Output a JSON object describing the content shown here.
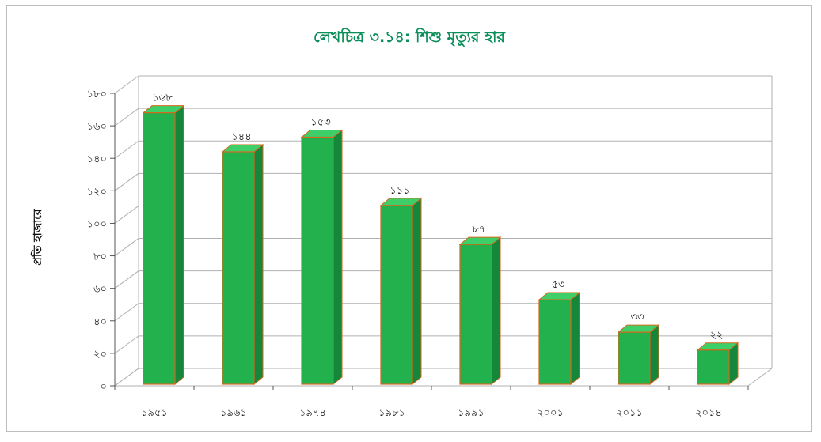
{
  "chart_data": {
    "type": "bar",
    "title": "লেখচিত্র ৩.১৪: শিশু মৃত্যুর হার",
    "ylabel": "প্রতি হাজারে",
    "xlabel": "",
    "categories": [
      "১৯৫১",
      "১৯৬১",
      "১৯৭৪",
      "১৯৮১",
      "১৯৯১",
      "২০০১",
      "২০১১",
      "২০১৪"
    ],
    "values": [
      168,
      144,
      153,
      111,
      87,
      53,
      33,
      22
    ],
    "data_labels": [
      "১৬৮",
      "১৪৪",
      "১৫৩",
      "১১১",
      "৮৭",
      "৫৩",
      "৩৩",
      "২২"
    ],
    "yticks": [
      "০",
      "২০",
      "৪০",
      "৬০",
      "৮০",
      "১০০",
      "১২০",
      "১৪০",
      "১৬০",
      "১৮০"
    ],
    "ylim": [
      0,
      180
    ],
    "grid": true,
    "legend": "none",
    "colors": {
      "bar_front": "#22b14c",
      "bar_side": "#14873a",
      "bar_top": "#3fcf68",
      "bar_edge": "#d2691e",
      "grid": "#b0b0b0",
      "title": "#0a8f5a"
    }
  }
}
